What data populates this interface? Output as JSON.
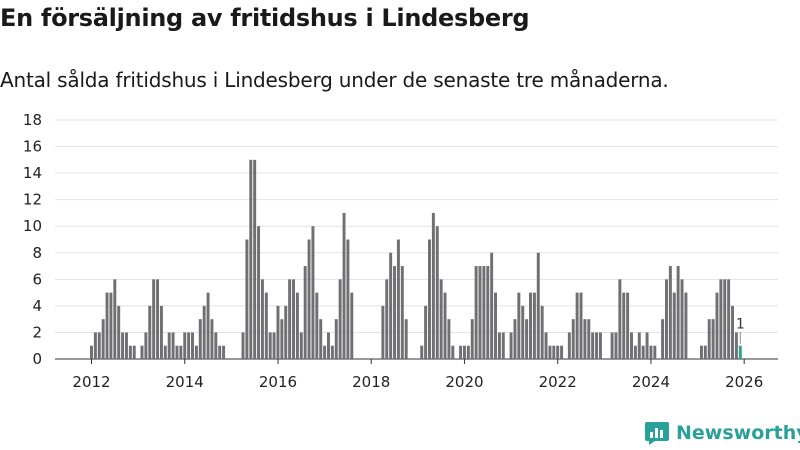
{
  "title": "En försäljning av fritidshus i Lindesberg",
  "subtitle": "Antal sålda fritidshus i Lindesberg under de senaste tre månaderna.",
  "brand": "Newsworthy",
  "colors": {
    "bar": "#707074",
    "highlight": "#2aa198",
    "grid": "#e3e3e3",
    "brand": "#2aa198"
  },
  "chart_data": {
    "type": "bar",
    "title": "",
    "xlabel": "",
    "ylabel": "",
    "ylim": [
      0,
      18
    ],
    "yticks": [
      "0",
      "2",
      "4",
      "6",
      "8",
      "10",
      "12",
      "14",
      "16",
      "18"
    ],
    "xticks": [
      "2012",
      "2014",
      "2016",
      "2018",
      "2020",
      "2022",
      "2024",
      "2026"
    ],
    "grid": true,
    "annotation": {
      "text": "1",
      "target": "last"
    },
    "categories": [
      "2012-01",
      "2012-02",
      "2012-03",
      "2012-04",
      "2012-05",
      "2012-06",
      "2012-07",
      "2012-08",
      "2012-09",
      "2012-10",
      "2012-11",
      "2012-12",
      "2013-01",
      "2013-02",
      "2013-03",
      "2013-04",
      "2013-05",
      "2013-06",
      "2013-07",
      "2013-08",
      "2013-09",
      "2013-10",
      "2013-11",
      "2013-12",
      "2014-01",
      "2014-02",
      "2014-03",
      "2014-04",
      "2014-05",
      "2014-06",
      "2014-07",
      "2014-08",
      "2014-09",
      "2014-10",
      "2014-11",
      "2014-12",
      "2015-01",
      "2015-02",
      "2015-03",
      "2015-04",
      "2015-05",
      "2015-06",
      "2015-07",
      "2015-08",
      "2015-09",
      "2015-10",
      "2015-11",
      "2015-12",
      "2016-01",
      "2016-02",
      "2016-03",
      "2016-04",
      "2016-05",
      "2016-06",
      "2016-07",
      "2016-08",
      "2016-09",
      "2016-10",
      "2016-11",
      "2016-12",
      "2017-01",
      "2017-02",
      "2017-03",
      "2017-04",
      "2017-05",
      "2017-06",
      "2017-07",
      "2017-08",
      "2017-09",
      "2017-10",
      "2017-11",
      "2017-12",
      "2018-01",
      "2018-02",
      "2018-03",
      "2018-04",
      "2018-05",
      "2018-06",
      "2018-07",
      "2018-08",
      "2018-09",
      "2018-10",
      "2018-11",
      "2018-12",
      "2019-01",
      "2019-02",
      "2019-03",
      "2019-04",
      "2019-05",
      "2019-06",
      "2019-07",
      "2019-08",
      "2019-09",
      "2019-10",
      "2019-11",
      "2019-12",
      "2020-01",
      "2020-02",
      "2020-03",
      "2020-04",
      "2020-05",
      "2020-06",
      "2020-07",
      "2020-08",
      "2020-09",
      "2020-10",
      "2020-11",
      "2020-12",
      "2021-01",
      "2021-02",
      "2021-03",
      "2021-04",
      "2021-05",
      "2021-06",
      "2021-07",
      "2021-08",
      "2021-09",
      "2021-10",
      "2021-11",
      "2021-12",
      "2022-01",
      "2022-02",
      "2022-03",
      "2022-04",
      "2022-05",
      "2022-06",
      "2022-07",
      "2022-08",
      "2022-09",
      "2022-10",
      "2022-11",
      "2022-12",
      "2023-01",
      "2023-02",
      "2023-03",
      "2023-04",
      "2023-05",
      "2023-06",
      "2023-07",
      "2023-08",
      "2023-09",
      "2023-10",
      "2023-11",
      "2023-12",
      "2024-01",
      "2024-02",
      "2024-03",
      "2024-04",
      "2024-05",
      "2024-06",
      "2024-07",
      "2024-08",
      "2024-09",
      "2024-10",
      "2024-11",
      "2024-12",
      "2025-01",
      "2025-02",
      "2025-03",
      "2025-04",
      "2025-05",
      "2025-06",
      "2025-07",
      "2025-08",
      "2025-09",
      "2025-10",
      "2025-11",
      "2025-12"
    ],
    "values": [
      1,
      2,
      2,
      3,
      5,
      5,
      6,
      4,
      2,
      2,
      1,
      1,
      0,
      1,
      2,
      4,
      6,
      6,
      4,
      1,
      2,
      2,
      1,
      1,
      2,
      2,
      2,
      1,
      3,
      4,
      5,
      3,
      2,
      1,
      1,
      0,
      0,
      0,
      0,
      2,
      9,
      15,
      15,
      10,
      6,
      5,
      2,
      2,
      4,
      3,
      4,
      6,
      6,
      5,
      2,
      7,
      9,
      10,
      5,
      3,
      1,
      2,
      1,
      3,
      6,
      11,
      9,
      5,
      0,
      0,
      0,
      0,
      0,
      0,
      0,
      4,
      6,
      8,
      7,
      9,
      7,
      3,
      0,
      0,
      0,
      1,
      4,
      9,
      11,
      10,
      6,
      5,
      3,
      1,
      0,
      1,
      1,
      1,
      3,
      7,
      7,
      7,
      7,
      8,
      5,
      2,
      2,
      0,
      2,
      3,
      5,
      4,
      3,
      5,
      5,
      8,
      4,
      2,
      1,
      1,
      1,
      1,
      0,
      2,
      3,
      5,
      5,
      3,
      3,
      2,
      2,
      2,
      0,
      0,
      2,
      2,
      6,
      5,
      5,
      2,
      1,
      2,
      1,
      2,
      1,
      1,
      0,
      3,
      6,
      7,
      5,
      7,
      6,
      5,
      0,
      0,
      0,
      1,
      1,
      3,
      3,
      5,
      6,
      6,
      6,
      4,
      2,
      1
    ]
  }
}
